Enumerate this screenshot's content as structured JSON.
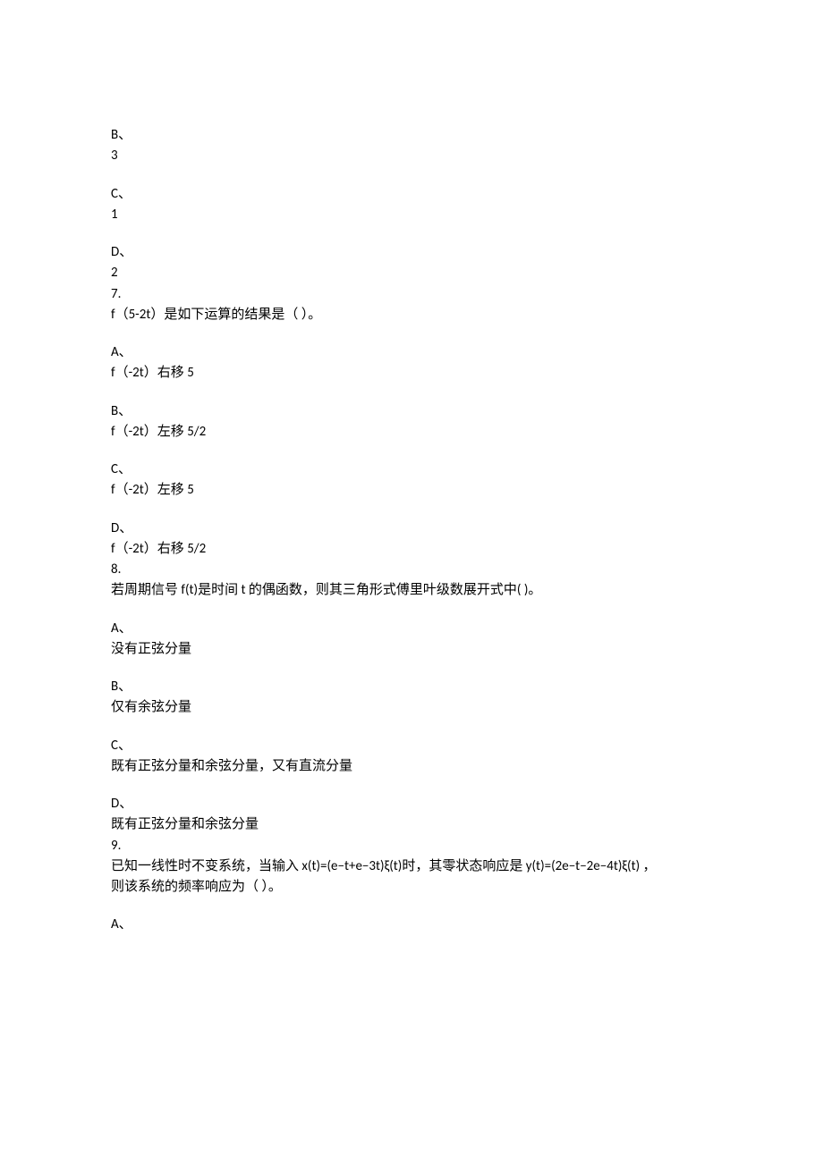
{
  "doc": {
    "text_color": "#000000",
    "bg_color": "#ffffff",
    "font_size": 15,
    "lines": [
      {
        "text": "B、",
        "gap": false
      },
      {
        "text": "3",
        "gap": true
      },
      {
        "text": "C、",
        "gap": false
      },
      {
        "text": "1",
        "gap": true
      },
      {
        "text": "D、",
        "gap": false
      },
      {
        "text": "2",
        "gap": false
      },
      {
        "text": "7.",
        "gap": false
      },
      {
        "text": "f（5-2t）是如下运算的结果是（  ）。",
        "gap": true
      },
      {
        "text": "A、",
        "gap": false
      },
      {
        "text": "f（-2t）右移 5",
        "gap": true
      },
      {
        "text": "B、",
        "gap": false
      },
      {
        "text": "f（-2t）左移 5/2",
        "gap": true
      },
      {
        "text": "C、",
        "gap": false
      },
      {
        "text": "f（-2t）左移 5",
        "gap": true
      },
      {
        "text": "D、",
        "gap": false
      },
      {
        "text": "f（-2t）右移 5/2",
        "gap": false
      },
      {
        "text": "8.",
        "gap": false
      },
      {
        "text": "若周期信号 f(t)是时间 t 的偶函数，则其三角形式傅里叶级数展开式中( )。",
        "gap": true
      },
      {
        "text": "A、",
        "gap": false
      },
      {
        "text": "没有正弦分量",
        "gap": true
      },
      {
        "text": "B、",
        "gap": false
      },
      {
        "text": "仅有余弦分量",
        "gap": true
      },
      {
        "text": "C、",
        "gap": false
      },
      {
        "text": "既有正弦分量和余弦分量，又有直流分量",
        "gap": true
      },
      {
        "text": "D、",
        "gap": false
      },
      {
        "text": "既有正弦分量和余弦分量",
        "gap": false
      },
      {
        "text": "9.",
        "gap": false
      },
      {
        "text": "已知一线性时不变系统，当输入 x(t)=(e−t+e−3t)ξ(t)时，其零状态响应是 y(t)=(2e−t−2e−4t)ξ(t) ，",
        "gap": false
      },
      {
        "text": "则该系统的频率响应为（  ）。",
        "gap": true
      },
      {
        "text": "A、",
        "gap": false
      }
    ]
  }
}
